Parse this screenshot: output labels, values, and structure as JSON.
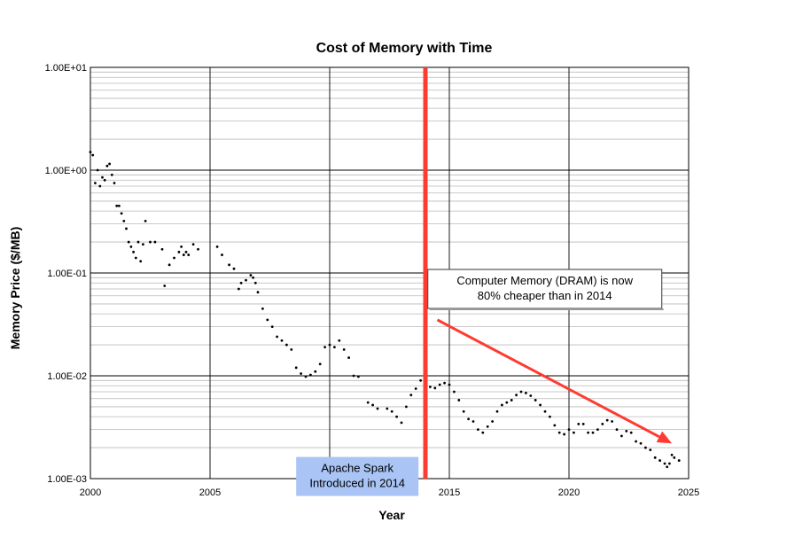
{
  "chart_data": {
    "type": "scatter",
    "title": "Cost of Memory with Time",
    "xlabel": "Year",
    "ylabel": "Memory Price ($/MB)",
    "xlim": [
      2000,
      2025
    ],
    "ylim": [
      0.001,
      10
    ],
    "yscale": "log",
    "grid": true,
    "x_ticks": [
      "2000",
      "2005",
      "2010",
      "2015",
      "2020",
      "2025"
    ],
    "y_ticks": [
      "1.00E-03",
      "1.00E-02",
      "1.00E-01",
      "1.00E+00",
      "1.00E+01"
    ],
    "marker_color": "#000000",
    "series": [
      {
        "x": [
          2000.0,
          2000.1,
          2000.2,
          2000.3,
          2000.4,
          2000.5,
          2000.6,
          2000.7,
          2000.8,
          2000.9,
          2001.0,
          2001.1,
          2001.2,
          2001.3,
          2001.4,
          2001.5,
          2001.6,
          2001.7,
          2001.8,
          2001.9,
          2002.0,
          2002.1,
          2002.2,
          2002.3,
          2002.5,
          2002.7,
          2003.0,
          2003.1,
          2003.3,
          2003.5,
          2003.7,
          2003.8,
          2003.9,
          2004.0,
          2004.1,
          2004.3,
          2004.5,
          2005.3,
          2005.5,
          2005.8,
          2006.0,
          2006.2,
          2006.3,
          2006.5,
          2006.7,
          2006.8,
          2006.9,
          2007.0,
          2007.2,
          2007.4,
          2007.6,
          2007.8,
          2008.0,
          2008.2,
          2008.4,
          2008.6,
          2008.8,
          2009.0,
          2009.2,
          2009.4,
          2009.6,
          2009.8,
          2010.0,
          2010.2,
          2010.4,
          2010.6,
          2010.8,
          2011.0,
          2011.2,
          2011.6,
          2011.8,
          2012.0,
          2012.4,
          2012.6,
          2012.8,
          2013.0,
          2013.2,
          2013.4,
          2013.6,
          2013.8,
          2014.0,
          2014.2,
          2014.4,
          2014.6,
          2014.8,
          2015.0,
          2015.2,
          2015.4,
          2015.6,
          2015.8,
          2016.0,
          2016.2,
          2016.4,
          2016.6,
          2016.8,
          2017.0,
          2017.2,
          2017.4,
          2017.6,
          2017.8,
          2018.0,
          2018.2,
          2018.4,
          2018.6,
          2018.8,
          2019.0,
          2019.2,
          2019.4,
          2019.6,
          2019.8,
          2020.0,
          2020.2,
          2020.4,
          2020.6,
          2020.8,
          2021.0,
          2021.2,
          2021.4,
          2021.6,
          2021.8,
          2022.0,
          2022.2,
          2022.4,
          2022.6,
          2022.8,
          2023.0,
          2023.2,
          2023.4,
          2023.6,
          2023.8,
          2024.0,
          2024.1,
          2024.2,
          2024.3,
          2024.4,
          2024.6
        ],
        "y": [
          1.5,
          1.4,
          0.75,
          1.0,
          0.7,
          0.85,
          0.8,
          1.1,
          1.15,
          0.9,
          0.75,
          0.45,
          0.45,
          0.38,
          0.32,
          0.27,
          0.2,
          0.18,
          0.16,
          0.14,
          0.2,
          0.13,
          0.19,
          0.32,
          0.2,
          0.2,
          0.17,
          0.075,
          0.12,
          0.14,
          0.16,
          0.18,
          0.15,
          0.16,
          0.15,
          0.19,
          0.17,
          0.18,
          0.15,
          0.12,
          0.11,
          0.07,
          0.08,
          0.085,
          0.095,
          0.09,
          0.08,
          0.065,
          0.045,
          0.035,
          0.03,
          0.024,
          0.022,
          0.02,
          0.018,
          0.012,
          0.0105,
          0.0098,
          0.0102,
          0.011,
          0.013,
          0.019,
          0.02,
          0.019,
          0.022,
          0.018,
          0.015,
          0.01,
          0.0098,
          0.0055,
          0.0052,
          0.0048,
          0.0048,
          0.0045,
          0.004,
          0.0035,
          0.005,
          0.0065,
          0.0075,
          0.009,
          0.0085,
          0.0078,
          0.0076,
          0.0082,
          0.0085,
          0.0082,
          0.007,
          0.0058,
          0.0045,
          0.0038,
          0.0036,
          0.003,
          0.0028,
          0.0032,
          0.0036,
          0.0045,
          0.0052,
          0.0055,
          0.0058,
          0.0065,
          0.007,
          0.0068,
          0.0064,
          0.0058,
          0.0052,
          0.0045,
          0.004,
          0.0033,
          0.0028,
          0.0027,
          0.003,
          0.0028,
          0.0034,
          0.0034,
          0.0028,
          0.0028,
          0.003,
          0.0034,
          0.0037,
          0.0036,
          0.003,
          0.0026,
          0.0029,
          0.0028,
          0.0023,
          0.0022,
          0.002,
          0.0019,
          0.0016,
          0.0015,
          0.0014,
          0.0013,
          0.0014,
          0.0017,
          0.0016,
          0.0015
        ]
      }
    ],
    "marker_line": {
      "x": 2014,
      "color": "#ff3b30"
    },
    "trend_arrow": {
      "x1": 2014.5,
      "y1": 0.035,
      "x2": 2024.3,
      "y2": 0.0022,
      "color": "#ff3b30"
    },
    "annotations": [
      {
        "lines": [
          "Computer Memory (DRAM) is now",
          "80% cheaper than in 2014"
        ],
        "x": 2014.1,
        "y": 0.1,
        "style": "box-outline"
      },
      {
        "lines": [
          "Apache Spark",
          "Introduced in 2014"
        ],
        "x": 2008.6,
        "y": 0.0015,
        "style": "box-blue",
        "fill": "#a9c4f5"
      }
    ]
  }
}
